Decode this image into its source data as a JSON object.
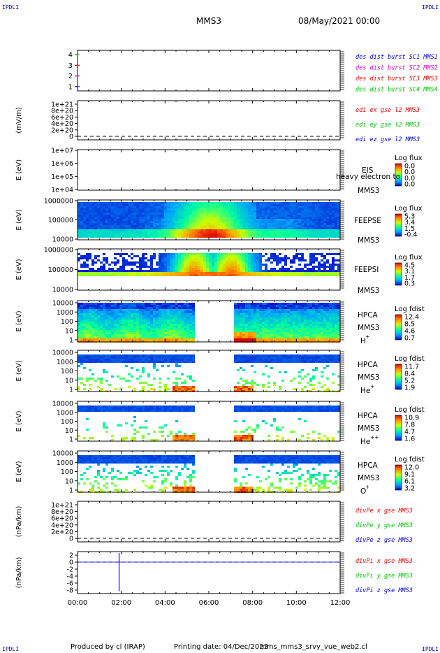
{
  "header": {
    "corner_label": "IPDLI",
    "spacecraft": "MMS3",
    "date": "08/May/2021 00:00"
  },
  "footer": {
    "producer": "Produced by cl (IRAP)",
    "printing": "Printing date: 04/Dec/2023",
    "filename": "mms_mms3_srvy_vue_web2.cl"
  },
  "colors": {
    "blue": "#0000ff",
    "magenta": "#dd00dd",
    "red": "#ff0000",
    "green": "#00cc00"
  },
  "chart_data": [
    {
      "type": "line",
      "id": "burst",
      "yticks": [
        "1",
        "2",
        "3",
        "4"
      ],
      "ylim": [
        0.6,
        4.4
      ],
      "legend": [
        {
          "text": "des dist burst SC1 MMS1",
          "color": "blue"
        },
        {
          "text": "des dist burst SC2 MMS2",
          "color": "magenta"
        },
        {
          "text": "des dist burst SC3 MMS3",
          "color": "red"
        },
        {
          "text": "des dist burst SC4 MMS4",
          "color": "green"
        }
      ]
    },
    {
      "type": "line",
      "id": "edi",
      "ylabel": "(mV/m)",
      "yticks": [
        "0",
        "2e+20",
        "4e+20",
        "6e+20",
        "8e+20",
        "1e+21"
      ],
      "dashed_zero": true,
      "legend": [
        {
          "text": "edi ex gse l2 MMS3",
          "color": "red"
        },
        {
          "text": "edi ey gse l2 MMS3",
          "color": "green"
        },
        {
          "text": "edi ez gse l2 MMS3",
          "color": "blue"
        }
      ]
    },
    {
      "type": "heatmap",
      "id": "eis",
      "ylabel": "E (eV)",
      "yticks": [
        "1e+04",
        "1e+05",
        "1e+06",
        "1e+07"
      ],
      "instrument": "EIS",
      "species": "heavy electron to",
      "sc": "MMS3",
      "colorbar_title": "Log flux",
      "colorbar_ticks": [
        "0.0",
        "0.0",
        "0.0",
        "0.0"
      ],
      "empty": true
    },
    {
      "type": "heatmap",
      "id": "feepse",
      "ylabel": "E (eV)",
      "yticks": [
        "10000",
        "100000",
        "1000000"
      ],
      "instrument": "FEEPSE",
      "sc": "MMS3",
      "colorbar_title": "Log flux",
      "colorbar_ticks": [
        "5.3",
        "3.4",
        "1.5",
        "-0.4"
      ]
    },
    {
      "type": "heatmap",
      "id": "feepsi",
      "ylabel": "E (eV)",
      "yticks": [
        "10000",
        "100000",
        "1000000"
      ],
      "instrument": "FEEPSI",
      "sc": "MMS3",
      "colorbar_title": "Log flux",
      "colorbar_ticks": [
        "4.5",
        "3.1",
        "1.7",
        "0.3"
      ]
    },
    {
      "type": "heatmap",
      "id": "hpca_h",
      "ylabel": "E (eV)",
      "yticks": [
        "1",
        "10",
        "100",
        "1000",
        "10000"
      ],
      "instrument": "HPCA",
      "sc": "MMS3",
      "species": "H",
      "species_sup": "+",
      "colorbar_title": "Log fdist",
      "colorbar_ticks": [
        "12.4",
        "8.5",
        "4.6",
        "0.7"
      ]
    },
    {
      "type": "heatmap",
      "id": "hpca_he",
      "ylabel": "E (eV)",
      "yticks": [
        "1",
        "10",
        "100",
        "1000",
        "10000"
      ],
      "instrument": "HPCA",
      "sc": "MMS3",
      "species": "He",
      "species_sup": "+",
      "colorbar_title": "Log fdist",
      "colorbar_ticks": [
        "11.7",
        "8.4",
        "5.2",
        "1.9"
      ]
    },
    {
      "type": "heatmap",
      "id": "hpca_hepp",
      "ylabel": "E (eV)",
      "yticks": [
        "1",
        "10",
        "100",
        "1000",
        "10000"
      ],
      "instrument": "HPCA",
      "sc": "MMS3",
      "species": "He",
      "species_sup": "++",
      "colorbar_title": "Log fdist",
      "colorbar_ticks": [
        "10.9",
        "7.8",
        "4.7",
        "1.6"
      ]
    },
    {
      "type": "heatmap",
      "id": "hpca_o",
      "ylabel": "E (eV)",
      "yticks": [
        "1",
        "10",
        "100",
        "1000",
        "10000"
      ],
      "instrument": "HPCA",
      "sc": "MMS3",
      "species": "O",
      "species_sup": "+",
      "colorbar_title": "Log fdist",
      "colorbar_ticks": [
        "12.0",
        "9.1",
        "6.1",
        "3.2"
      ]
    },
    {
      "type": "line",
      "id": "divpe",
      "ylabel": "(nPa/km)",
      "yticks": [
        "0",
        "2e+20",
        "4e+20",
        "6e+20",
        "8e+20",
        "1e+21"
      ],
      "dashed_zero": true,
      "legend": [
        {
          "text": "divPe x gse MMS3",
          "color": "red"
        },
        {
          "text": "divPe y gse MMS3",
          "color": "green"
        },
        {
          "text": "divPe z gse MMS3",
          "color": "blue"
        }
      ]
    },
    {
      "type": "line",
      "id": "divpi",
      "ylabel": "(nPa/km)",
      "yticks": [
        "-8",
        "-6",
        "-4",
        "-2",
        "0",
        "2"
      ],
      "ylim": [
        -9,
        3
      ],
      "dashed_zero": true,
      "spike_time_h": 1.9,
      "spike_range": [
        -8.3,
        2.6
      ],
      "legend": [
        {
          "text": "divPi x gse MMS3",
          "color": "red"
        },
        {
          "text": "divPi y gse MMS3",
          "color": "green"
        },
        {
          "text": "divPi z gse MMS3",
          "color": "blue"
        }
      ]
    }
  ],
  "time_axis": {
    "ticks": [
      "00:00",
      "02:00",
      "04:00",
      "06:00",
      "08:00",
      "10:00",
      "12:00"
    ],
    "range_h": [
      0,
      12
    ],
    "gaps_h": {
      "hpca_h": [
        5.4,
        7.1
      ],
      "hpca_he": [
        5.4,
        7.1
      ],
      "hpca_hepp": [
        5.4,
        7.1
      ],
      "hpca_o": [
        5.4,
        7.1
      ]
    }
  }
}
